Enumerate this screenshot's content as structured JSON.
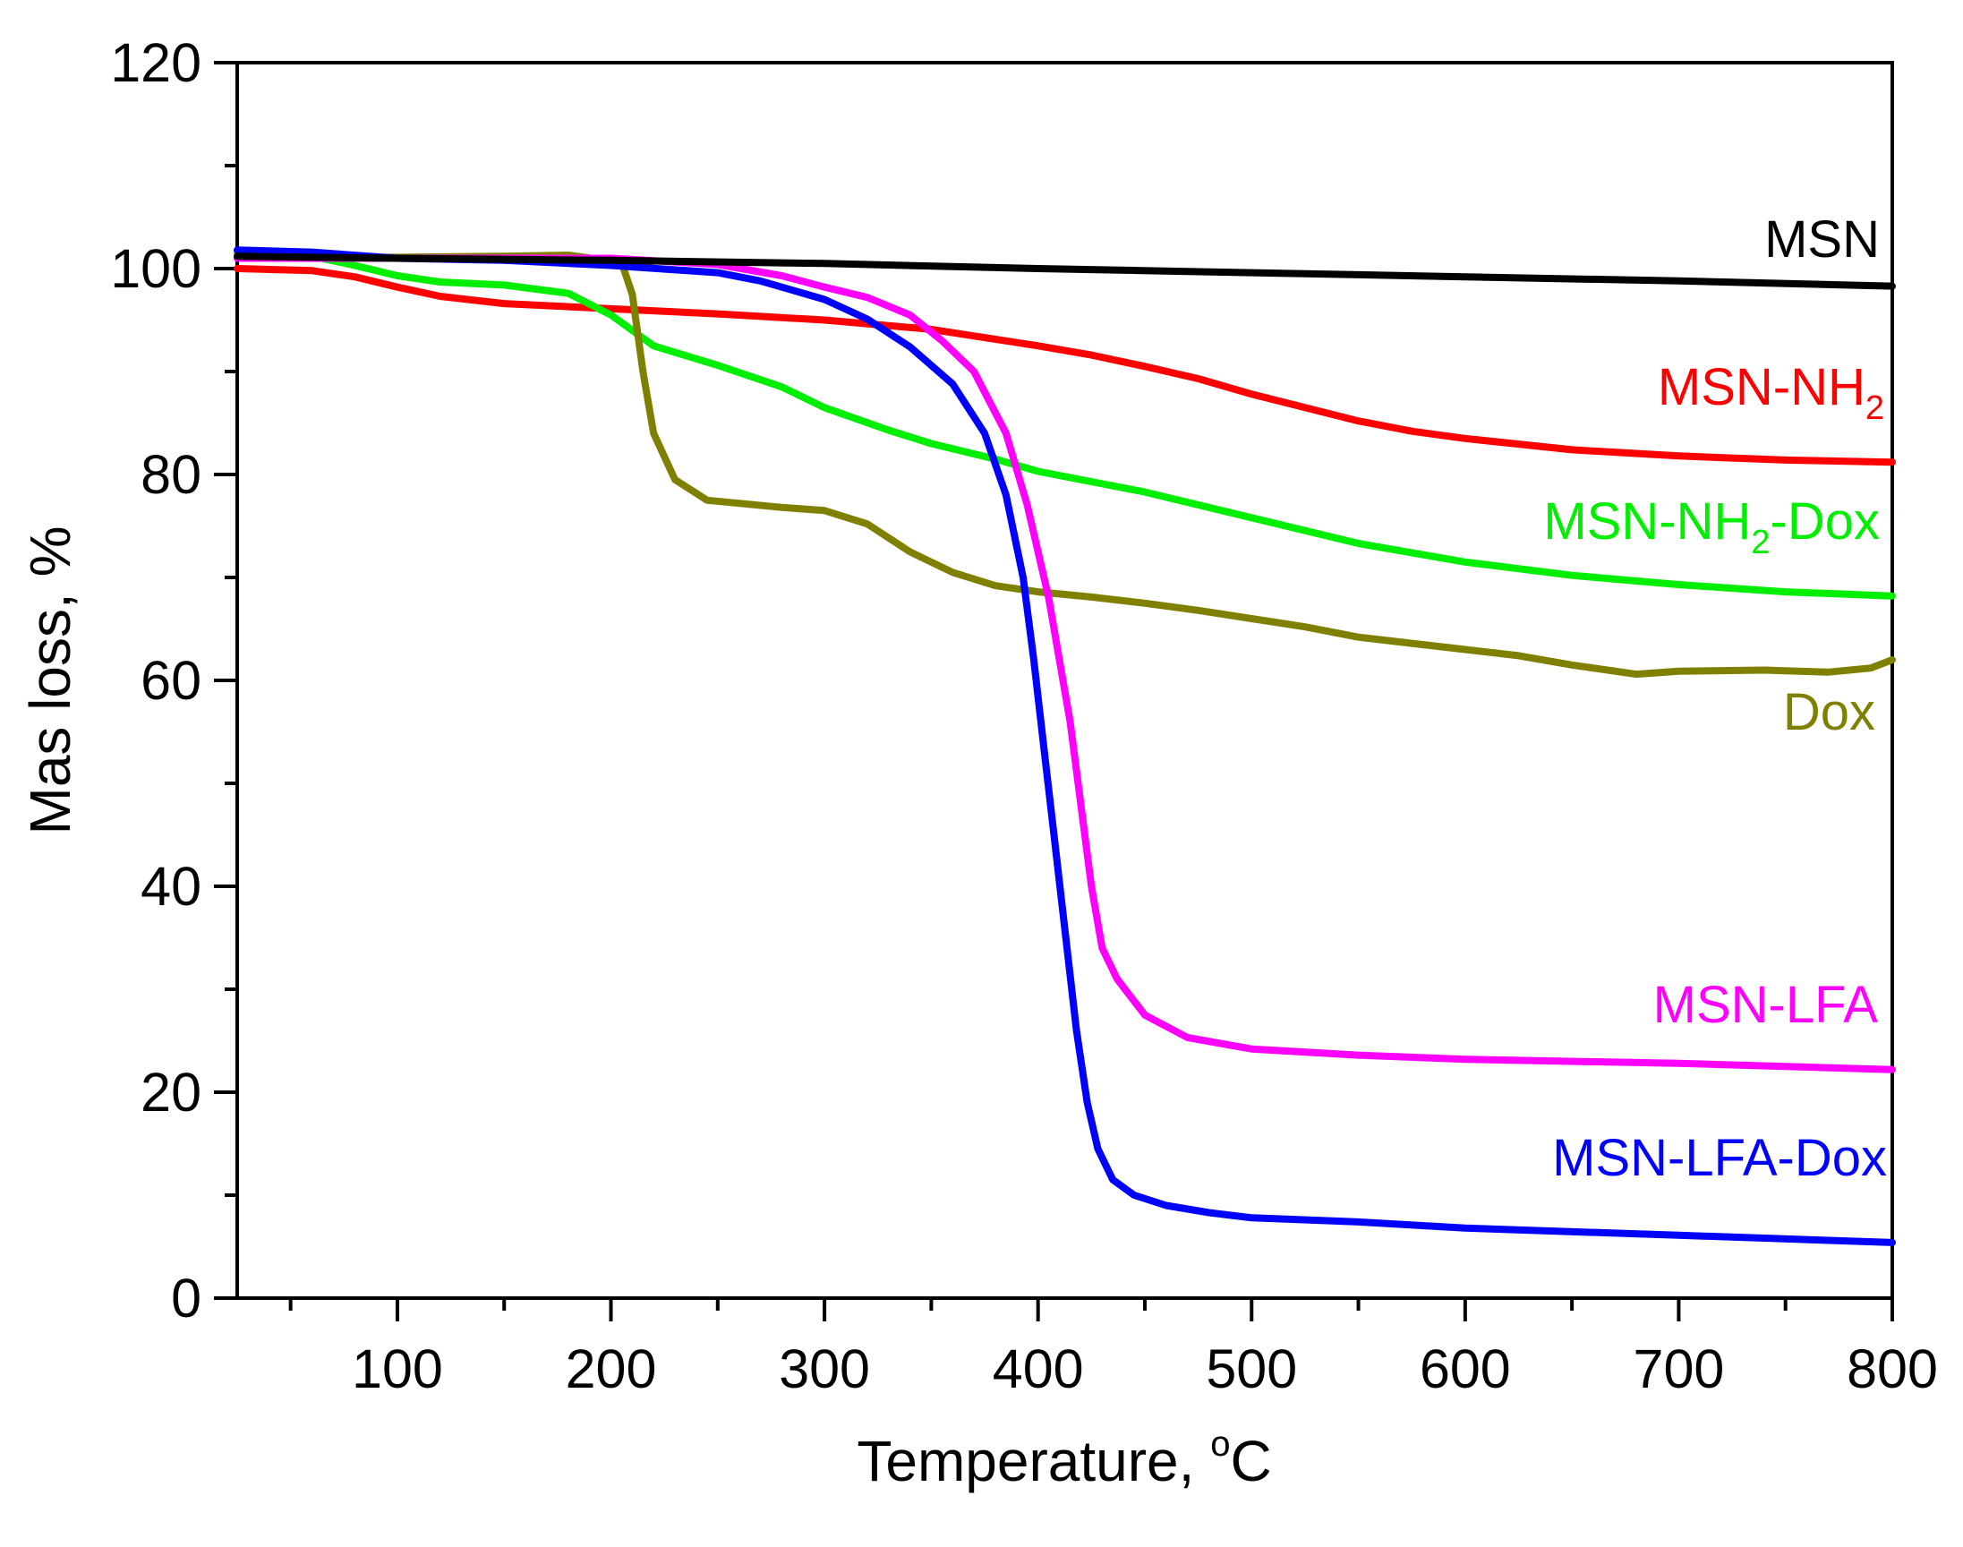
{
  "chart_data": {
    "type": "line",
    "title": "",
    "xlabel": "Temperature, ",
    "xlabel_unit_sup": "o",
    "xlabel_unit": "C",
    "ylabel": "Mas loss, %",
    "xlim": [
      25,
      800
    ],
    "ylim": [
      0,
      120
    ],
    "x_ticks": [
      100,
      200,
      300,
      400,
      500,
      600,
      700,
      800
    ],
    "y_ticks": [
      0,
      20,
      40,
      60,
      80,
      100,
      120
    ],
    "grid": false,
    "legend": "inline labels at right end of each curve",
    "series": [
      {
        "name": "MSN",
        "label_parts": [
          {
            "t": "MSN"
          }
        ],
        "color": "#000000",
        "points": [
          [
            25,
            101.2
          ],
          [
            100,
            101.0
          ],
          [
            200,
            100.8
          ],
          [
            300,
            100.5
          ],
          [
            400,
            100.0
          ],
          [
            500,
            99.6
          ],
          [
            600,
            99.2
          ],
          [
            700,
            98.8
          ],
          [
            800,
            98.3
          ]
        ]
      },
      {
        "name": "MSN-NH2",
        "label_parts": [
          {
            "t": "MSN-NH"
          },
          {
            "t": "2",
            "sub": true
          }
        ],
        "color": "#ff0000",
        "points": [
          [
            25,
            100
          ],
          [
            60,
            99.8
          ],
          [
            80,
            99.2
          ],
          [
            100,
            98.2
          ],
          [
            120,
            97.3
          ],
          [
            150,
            96.6
          ],
          [
            200,
            96.1
          ],
          [
            250,
            95.6
          ],
          [
            300,
            95.0
          ],
          [
            350,
            94.1
          ],
          [
            400,
            92.5
          ],
          [
            425,
            91.6
          ],
          [
            450,
            90.5
          ],
          [
            475,
            89.3
          ],
          [
            500,
            87.8
          ],
          [
            525,
            86.5
          ],
          [
            550,
            85.2
          ],
          [
            575,
            84.2
          ],
          [
            600,
            83.5
          ],
          [
            650,
            82.4
          ],
          [
            700,
            81.8
          ],
          [
            750,
            81.4
          ],
          [
            800,
            81.2
          ]
        ]
      },
      {
        "name": "MSN-NH2-Dox",
        "label_parts": [
          {
            "t": "MSN-NH"
          },
          {
            "t": "2",
            "sub": true
          },
          {
            "t": "-Dox"
          }
        ],
        "color": "#00ee00",
        "points": [
          [
            25,
            101.5
          ],
          [
            60,
            101.2
          ],
          [
            80,
            100.3
          ],
          [
            100,
            99.3
          ],
          [
            120,
            98.7
          ],
          [
            150,
            98.4
          ],
          [
            180,
            97.6
          ],
          [
            200,
            95.5
          ],
          [
            220,
            92.5
          ],
          [
            250,
            90.6
          ],
          [
            280,
            88.5
          ],
          [
            300,
            86.5
          ],
          [
            330,
            84.3
          ],
          [
            350,
            83.0
          ],
          [
            380,
            81.5
          ],
          [
            400,
            80.3
          ],
          [
            450,
            78.3
          ],
          [
            500,
            75.8
          ],
          [
            550,
            73.3
          ],
          [
            600,
            71.5
          ],
          [
            650,
            70.2
          ],
          [
            700,
            69.3
          ],
          [
            750,
            68.6
          ],
          [
            800,
            68.2
          ]
        ]
      },
      {
        "name": "Dox",
        "label_parts": [
          {
            "t": "Dox"
          }
        ],
        "color": "#808000",
        "points": [
          [
            25,
            101
          ],
          [
            100,
            101.1
          ],
          [
            150,
            101.2
          ],
          [
            180,
            101.3
          ],
          [
            205,
            100.6
          ],
          [
            210,
            97.5
          ],
          [
            215,
            90
          ],
          [
            220,
            84
          ],
          [
            230,
            79.5
          ],
          [
            245,
            77.5
          ],
          [
            260,
            77.2
          ],
          [
            280,
            76.8
          ],
          [
            300,
            76.5
          ],
          [
            320,
            75.2
          ],
          [
            340,
            72.5
          ],
          [
            360,
            70.5
          ],
          [
            380,
            69.2
          ],
          [
            400,
            68.6
          ],
          [
            425,
            68.1
          ],
          [
            450,
            67.5
          ],
          [
            475,
            66.8
          ],
          [
            500,
            66
          ],
          [
            525,
            65.2
          ],
          [
            550,
            64.2
          ],
          [
            575,
            63.6
          ],
          [
            600,
            63
          ],
          [
            625,
            62.4
          ],
          [
            650,
            61.5
          ],
          [
            680,
            60.6
          ],
          [
            700,
            60.9
          ],
          [
            740,
            61
          ],
          [
            770,
            60.8
          ],
          [
            790,
            61.2
          ],
          [
            800,
            62
          ]
        ]
      },
      {
        "name": "MSN-LFA",
        "label_parts": [
          {
            "t": "MSN-LFA"
          }
        ],
        "color": "#ff00ff",
        "points": [
          [
            25,
            101
          ],
          [
            100,
            101
          ],
          [
            200,
            101
          ],
          [
            250,
            100.4
          ],
          [
            280,
            99.3
          ],
          [
            300,
            98.2
          ],
          [
            320,
            97.2
          ],
          [
            340,
            95.5
          ],
          [
            355,
            93
          ],
          [
            370,
            90
          ],
          [
            385,
            84
          ],
          [
            395,
            77
          ],
          [
            405,
            68
          ],
          [
            410,
            62
          ],
          [
            415,
            56
          ],
          [
            420,
            48
          ],
          [
            425,
            40
          ],
          [
            430,
            34
          ],
          [
            437,
            31
          ],
          [
            450,
            27.5
          ],
          [
            470,
            25.3
          ],
          [
            500,
            24.2
          ],
          [
            550,
            23.6
          ],
          [
            600,
            23.2
          ],
          [
            700,
            22.8
          ],
          [
            800,
            22.2
          ]
        ]
      },
      {
        "name": "MSN-LFA-Dox",
        "label_parts": [
          {
            "t": "MSN-LFA-Dox"
          }
        ],
        "color": "#0000ff",
        "points": [
          [
            25,
            101.8
          ],
          [
            60,
            101.6
          ],
          [
            100,
            101
          ],
          [
            150,
            100.8
          ],
          [
            200,
            100.3
          ],
          [
            250,
            99.6
          ],
          [
            270,
            98.8
          ],
          [
            300,
            97
          ],
          [
            320,
            95.1
          ],
          [
            340,
            92.4
          ],
          [
            360,
            88.8
          ],
          [
            375,
            84
          ],
          [
            385,
            78
          ],
          [
            393,
            70
          ],
          [
            398,
            62
          ],
          [
            403,
            53
          ],
          [
            408,
            44
          ],
          [
            413,
            35
          ],
          [
            418,
            26
          ],
          [
            423,
            19
          ],
          [
            428,
            14.5
          ],
          [
            435,
            11.5
          ],
          [
            445,
            10
          ],
          [
            460,
            9
          ],
          [
            480,
            8.3
          ],
          [
            500,
            7.8
          ],
          [
            550,
            7.4
          ],
          [
            600,
            6.8
          ],
          [
            700,
            6.1
          ],
          [
            800,
            5.4
          ]
        ]
      }
    ]
  }
}
